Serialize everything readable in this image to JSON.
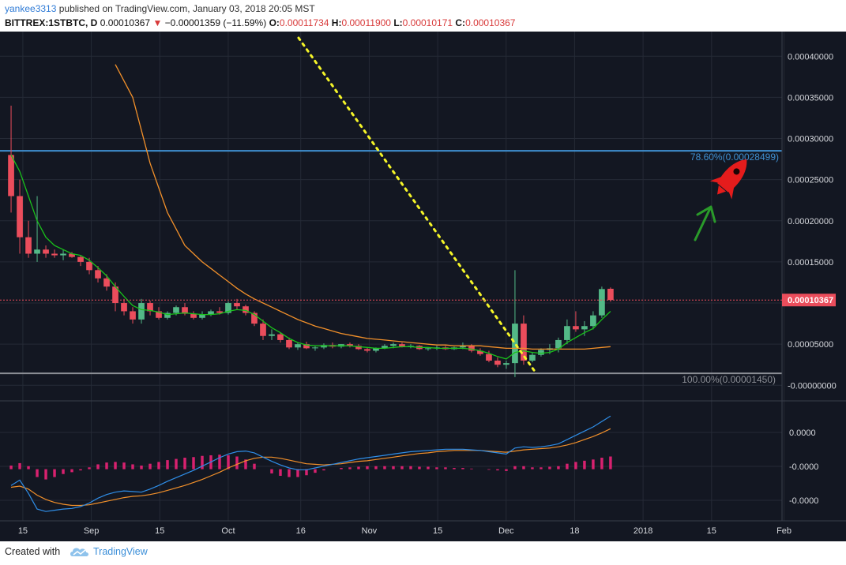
{
  "header": {
    "author": "yankee3313",
    "published_text": "published on TradingView.com, January 03, 2018 20:05 MST",
    "symbol": "BITTREX:1STBTC, D",
    "last": "0.00010367",
    "change": "−0.00001359 (−11.59%)",
    "o_label": "O:",
    "o": "0.00011734",
    "h_label": "H:",
    "h": "0.00011900",
    "l_label": "L:",
    "l": "0.00010171",
    "c_label": "C:",
    "c": "0.00010367"
  },
  "colors": {
    "background": "#131722",
    "up": "#53b987",
    "down": "#eb4d5c",
    "ma_fast": "#19c21a",
    "ma_slow": "#f2902a",
    "fib": "#3f8fd0",
    "macd": "#2f8ee8",
    "signal": "#f2902a",
    "hist": "#d8216f",
    "dotted": "#f5f528",
    "rocket": "#e51c1c",
    "arrow": "#2a9a2a"
  },
  "chart_data": {
    "type": "candlestick",
    "title": "",
    "price_axis_ticks": [
      "0.00040000",
      "0.00035000",
      "0.00030000",
      "0.00025000",
      "0.00020000",
      "0.00015000",
      "0.00010000",
      "0.00005000",
      "-0.00000000"
    ],
    "price_axis_values": [
      0.0004,
      0.00035,
      0.0003,
      0.00025,
      0.0002,
      0.00015,
      0.0001,
      5e-05,
      0
    ],
    "ylim": [
      -1.7e-05,
      0.00043
    ],
    "time_axis_labels": [
      "15",
      "Sep",
      "15",
      "Oct",
      "16",
      "Nov",
      "15",
      "Dec",
      "18",
      "2018",
      "15",
      "Feb"
    ],
    "time_axis_positions": [
      4,
      21,
      38,
      55,
      73,
      90,
      107,
      124,
      141,
      158,
      175,
      193
    ],
    "last_price_label": "0.00010367",
    "last_price": 0.00010367,
    "fib_levels": [
      {
        "label": "78.60%(0.00028499)",
        "value": 0.00028499
      },
      {
        "label": "100.00%(0.00001450)",
        "value": 1.45e-05
      }
    ],
    "candles_ohlc": [
      [
        0.00028,
        0.00034,
        0.00021,
        0.00023
      ],
      [
        0.00023,
        0.00025,
        0.00016,
        0.00018
      ],
      [
        0.00018,
        0.0002,
        0.000155,
        0.00016
      ],
      [
        0.00016,
        0.00023,
        0.00015,
        0.000165
      ],
      [
        0.000165,
        0.00017,
        0.000155,
        0.00016
      ],
      [
        0.00016,
        0.000165,
        0.000155,
        0.000158
      ],
      [
        0.000158,
        0.000165,
        0.000152,
        0.00016
      ],
      [
        0.00016,
        0.000162,
        0.000155,
        0.000156
      ],
      [
        0.000156,
        0.000158,
        0.000145,
        0.00015
      ],
      [
        0.00015,
        0.000155,
        0.000135,
        0.00014
      ],
      [
        0.00014,
        0.000145,
        0.000125,
        0.00013
      ],
      [
        0.00013,
        0.000135,
        0.000115,
        0.00012
      ],
      [
        0.00012,
        0.000125,
        9e-05,
        0.0001
      ],
      [
        0.0001,
        0.000105,
        8.5e-05,
        9e-05
      ],
      [
        9e-05,
        9.5e-05,
        7.5e-05,
        8e-05
      ],
      [
        8e-05,
        0.000105,
        7.5e-05,
        0.0001
      ],
      [
        0.0001,
        0.000103,
        8.5e-05,
        9e-05
      ],
      [
        9e-05,
        9.5e-05,
        8e-05,
        8.2e-05
      ],
      [
        8.2e-05,
        9e-05,
        8e-05,
        8.8e-05
      ],
      [
        8.8e-05,
        9.7e-05,
        8.5e-05,
        9.5e-05
      ],
      [
        9.5e-05,
        0.0001,
        8.5e-05,
        8.7e-05
      ],
      [
        8.7e-05,
        9e-05,
        8e-05,
        8.2e-05
      ],
      [
        8.2e-05,
        9e-05,
        8e-05,
        8.6e-05
      ],
      [
        8.6e-05,
        9.2e-05,
        8.4e-05,
        9e-05
      ],
      [
        9e-05,
        9.5e-05,
        8.6e-05,
        8.8e-05
      ],
      [
        8.8e-05,
        0.000102,
        8.6e-05,
        0.0001
      ],
      [
        0.0001,
        0.000105,
        9.2e-05,
        9.6e-05
      ],
      [
        9.6e-05,
        9.8e-05,
        8.5e-05,
        8.8e-05
      ],
      [
        8.8e-05,
        9e-05,
        7.2e-05,
        7.5e-05
      ],
      [
        7.5e-05,
        8e-05,
        5.5e-05,
        6e-05
      ],
      [
        6e-05,
        6.8e-05,
        5.5e-05,
        6.2e-05
      ],
      [
        6.2e-05,
        6.4e-05,
        5.2e-05,
        5.5e-05
      ],
      [
        5.5e-05,
        5.8e-05,
        4.4e-05,
        4.6e-05
      ],
      [
        4.6e-05,
        5.2e-05,
        4.3e-05,
        5e-05
      ],
      [
        5e-05,
        5.3e-05,
        4.4e-05,
        4.5e-05
      ],
      [
        4.5e-05,
        4.8e-05,
        4.2e-05,
        4.6e-05
      ],
      [
        4.6e-05,
        5.1e-05,
        4.4e-05,
        4.9e-05
      ],
      [
        4.9e-05,
        5.2e-05,
        4.5e-05,
        4.7e-05
      ],
      [
        4.7e-05,
        5e-05,
        4.5e-05,
        5e-05
      ],
      [
        5e-05,
        5.2e-05,
        4.6e-05,
        4.8e-05
      ],
      [
        4.8e-05,
        5e-05,
        4.3e-05,
        4.4e-05
      ],
      [
        4.4e-05,
        4.6e-05,
        4e-05,
        4.2e-05
      ],
      [
        4.2e-05,
        4.6e-05,
        4e-05,
        4.5e-05
      ],
      [
        4.5e-05,
        5e-05,
        4.4e-05,
        4.8e-05
      ],
      [
        4.8e-05,
        5.2e-05,
        4.5e-05,
        5e-05
      ],
      [
        5e-05,
        5.2e-05,
        4.6e-05,
        4.7e-05
      ],
      [
        4.7e-05,
        5e-05,
        4.5e-05,
        4.8e-05
      ],
      [
        4.8e-05,
        4.9e-05,
        4.3e-05,
        4.4e-05
      ],
      [
        4.4e-05,
        4.6e-05,
        4.2e-05,
        4.5e-05
      ],
      [
        4.5e-05,
        4.8e-05,
        4.3e-05,
        4.6e-05
      ],
      [
        4.6e-05,
        4.8e-05,
        4.3e-05,
        4.4e-05
      ],
      [
        4.4e-05,
        4.7e-05,
        4.3e-05,
        4.6e-05
      ],
      [
        4.6e-05,
        5.2e-05,
        4.4e-05,
        4.8e-05
      ],
      [
        4.8e-05,
        5e-05,
        4e-05,
        4.2e-05
      ],
      [
        4.2e-05,
        4.5e-05,
        3.6e-05,
        3.8e-05
      ],
      [
        3.8e-05,
        4.2e-05,
        2.8e-05,
        3e-05
      ],
      [
        3e-05,
        3.4e-05,
        2.2e-05,
        2.5e-05
      ],
      [
        2.5e-05,
        3e-05,
        2e-05,
        2.7e-05
      ],
      [
        2.7e-05,
        0.00014,
        1e-05,
        7.5e-05
      ],
      [
        7.5e-05,
        8.5e-05,
        2.5e-05,
        3e-05
      ],
      [
        3e-05,
        4e-05,
        2.8e-05,
        3.7e-05
      ],
      [
        3.7e-05,
        4.5e-05,
        3.5e-05,
        4.3e-05
      ],
      [
        4.3e-05,
        5e-05,
        3.8e-05,
        4.5e-05
      ],
      [
        4.5e-05,
        5.8e-05,
        4e-05,
        5.5e-05
      ],
      [
        5.5e-05,
        8e-05,
        5e-05,
        7.2e-05
      ],
      [
        7.2e-05,
        9e-05,
        6.5e-05,
        6.8e-05
      ],
      [
        6.8e-05,
        7.8e-05,
        6e-05,
        7.2e-05
      ],
      [
        7.2e-05,
        9e-05,
        6.8e-05,
        8.5e-05
      ],
      [
        8.5e-05,
        0.00012,
        8.2e-05,
        0.000117
      ],
      [
        0.00011734,
        0.000119,
        0.00010171,
        0.00010367
      ]
    ],
    "ma_fast": [
      0.00028,
      0.00026,
      0.00023,
      0.0002,
      0.00018,
      0.00017,
      0.000165,
      0.00016,
      0.000158,
      0.000152,
      0.000143,
      0.000133,
      0.00012,
      0.000108,
      9.7e-05,
      9.2e-05,
      9.1e-05,
      8.9e-05,
      8.6e-05,
      8.7e-05,
      8.8e-05,
      8.7e-05,
      8.6e-05,
      8.6e-05,
      8.7e-05,
      9e-05,
      9.2e-05,
      9.1e-05,
      8.6e-05,
      7.8e-05,
      7e-05,
      6.4e-05,
      5.7e-05,
      5.2e-05,
      4.9e-05,
      4.8e-05,
      4.8e-05,
      4.8e-05,
      4.8e-05,
      4.8e-05,
      4.7e-05,
      4.6e-05,
      4.5e-05,
      4.5e-05,
      4.6e-05,
      4.7e-05,
      4.7e-05,
      4.6e-05,
      4.6e-05,
      4.5e-05,
      4.5e-05,
      4.5e-05,
      4.5e-05,
      4.4e-05,
      4.2e-05,
      3.9e-05,
      3.5e-05,
      3.2e-05,
      4e-05,
      4.2e-05,
      4e-05,
      3.9e-05,
      4e-05,
      4.4e-05,
      5.2e-05,
      5.8e-05,
      6.4e-05,
      6.9e-05,
      8e-05,
      9e-05
    ],
    "ma_slow": [
      null,
      null,
      null,
      null,
      null,
      null,
      null,
      null,
      null,
      null,
      null,
      null,
      0.00039,
      0.00037,
      0.00035,
      0.00031,
      0.00027,
      0.00024,
      0.00021,
      0.00019,
      0.00017,
      0.00016,
      0.00015,
      0.000142,
      0.000134,
      0.000126,
      0.000118,
      0.000111,
      0.000105,
      0.0001,
      9.5e-05,
      9e-05,
      8.5e-05,
      8e-05,
      7.6e-05,
      7.2e-05,
      6.9e-05,
      6.6e-05,
      6.3e-05,
      6.1e-05,
      5.9e-05,
      5.7e-05,
      5.6e-05,
      5.5e-05,
      5.4e-05,
      5.3e-05,
      5.2e-05,
      5.1e-05,
      5e-05,
      4.9e-05,
      4.9e-05,
      4.8e-05,
      4.8e-05,
      4.8e-05,
      4.8e-05,
      4.7e-05,
      4.6e-05,
      4.5e-05,
      4.5e-05,
      4.5e-05,
      4.4e-05,
      4.4e-05,
      4.4e-05,
      4.4e-05,
      4.4e-05,
      4.4e-05,
      4.4e-05,
      4.5e-05,
      4.6e-05,
      4.7e-05
    ],
    "macd_axis_ticks": [
      "0.0000",
      "-0.0000",
      "-0.0000"
    ],
    "macd_line": [
      -0.27,
      -0.18,
      -0.4,
      -0.66,
      -0.7,
      -0.68,
      -0.66,
      -0.65,
      -0.62,
      -0.56,
      -0.48,
      -0.42,
      -0.38,
      -0.36,
      -0.37,
      -0.38,
      -0.33,
      -0.27,
      -0.2,
      -0.14,
      -0.08,
      -0.02,
      0.05,
      0.12,
      0.19,
      0.25,
      0.29,
      0.3,
      0.27,
      0.2,
      0.13,
      0.07,
      0.02,
      -0.01,
      -0.01,
      0.02,
      0.05,
      0.08,
      0.11,
      0.14,
      0.17,
      0.19,
      0.21,
      0.23,
      0.25,
      0.27,
      0.29,
      0.3,
      0.31,
      0.32,
      0.33,
      0.33,
      0.33,
      0.32,
      0.31,
      0.29,
      0.27,
      0.25,
      0.35,
      0.37,
      0.36,
      0.37,
      0.39,
      0.42,
      0.49,
      0.56,
      0.63,
      0.7,
      0.79,
      0.88
    ],
    "signal_line": [
      -0.3,
      -0.28,
      -0.33,
      -0.43,
      -0.5,
      -0.55,
      -0.58,
      -0.6,
      -0.6,
      -0.59,
      -0.56,
      -0.53,
      -0.5,
      -0.47,
      -0.45,
      -0.44,
      -0.42,
      -0.39,
      -0.35,
      -0.31,
      -0.27,
      -0.22,
      -0.17,
      -0.11,
      -0.05,
      0.02,
      0.08,
      0.14,
      0.18,
      0.2,
      0.2,
      0.18,
      0.15,
      0.12,
      0.09,
      0.08,
      0.07,
      0.08,
      0.09,
      0.11,
      0.13,
      0.14,
      0.16,
      0.18,
      0.2,
      0.22,
      0.24,
      0.26,
      0.27,
      0.29,
      0.3,
      0.31,
      0.31,
      0.31,
      0.31,
      0.3,
      0.29,
      0.28,
      0.3,
      0.32,
      0.33,
      0.34,
      0.35,
      0.37,
      0.4,
      0.44,
      0.49,
      0.54,
      0.6,
      0.67
    ],
    "histogram": [
      0.06,
      0.1,
      0.05,
      -0.13,
      -0.17,
      -0.13,
      -0.08,
      -0.05,
      -0.02,
      0.03,
      0.08,
      0.11,
      0.12,
      0.11,
      0.08,
      0.06,
      0.09,
      0.12,
      0.15,
      0.17,
      0.19,
      0.2,
      0.22,
      0.23,
      0.24,
      0.23,
      0.21,
      0.16,
      0.09,
      0.0,
      -0.07,
      -0.11,
      -0.13,
      -0.13,
      -0.1,
      -0.06,
      -0.02,
      0.0,
      0.02,
      0.03,
      0.04,
      0.05,
      0.05,
      0.05,
      0.05,
      0.05,
      0.05,
      0.04,
      0.04,
      0.03,
      0.03,
      0.02,
      0.02,
      0.01,
      0.0,
      -0.01,
      -0.02,
      -0.03,
      0.05,
      0.05,
      0.03,
      0.03,
      0.04,
      0.05,
      0.09,
      0.12,
      0.14,
      0.16,
      0.19,
      0.21
    ]
  },
  "footer": {
    "created_with": "Created with",
    "brand": "TradingView"
  }
}
